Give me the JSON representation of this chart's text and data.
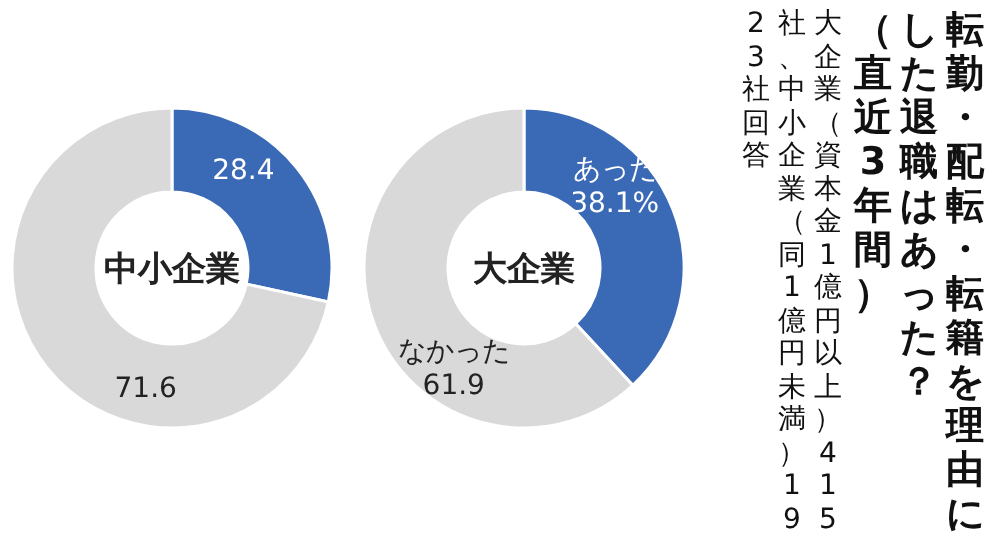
{
  "chart_data": [
    {
      "type": "donut",
      "title": "中小企業",
      "categories": [
        null,
        null
      ],
      "values": [
        28.4,
        71.6
      ],
      "colors": [
        "#3a69b5",
        "#d9d9d9"
      ],
      "value_labels": [
        "28.4",
        "71.6"
      ]
    },
    {
      "type": "donut",
      "title": "大企業",
      "categories": [
        "あった",
        "なかった"
      ],
      "values": [
        38.1,
        61.9
      ],
      "colors": [
        "#3a69b5",
        "#d9d9d9"
      ],
      "value_labels": [
        "38.1%",
        "61.9"
      ]
    },
    {
      "type": "other",
      "title": "転勤・配転・転籍を理由にした退職はあった？",
      "subtitle": "（直近3年間）",
      "annotations": [
        "大企業（資本金1億円以上）415社、中小企業（同1億円未満）1923社回答"
      ]
    }
  ]
}
